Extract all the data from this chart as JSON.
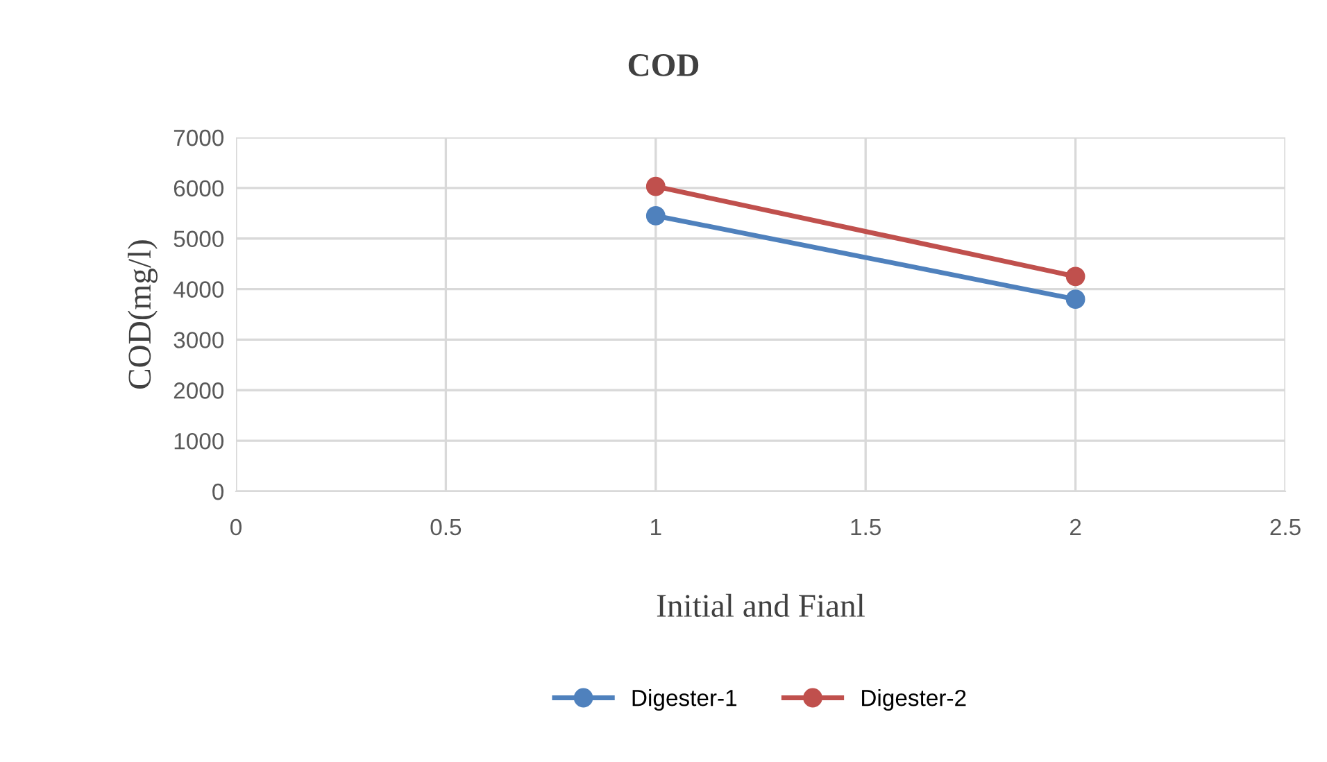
{
  "chart_data": {
    "type": "line",
    "title": "COD",
    "xlabel": "Initial and Fianl",
    "ylabel": "COD(mg/l)",
    "x": [
      1,
      2
    ],
    "series": [
      {
        "name": "Digester-1",
        "color": "#4f81bd",
        "values": [
          5450,
          3800
        ]
      },
      {
        "name": "Digester-2",
        "color": "#c0504d",
        "values": [
          6030,
          4250
        ]
      }
    ],
    "xlim": [
      0,
      2.5
    ],
    "xticks": [
      0,
      0.5,
      1,
      1.5,
      2,
      2.5
    ],
    "ylim": [
      0,
      7000
    ],
    "yticks": [
      0,
      1000,
      2000,
      3000,
      4000,
      5000,
      6000,
      7000
    ],
    "grid": true,
    "legend": "bottom",
    "marker": "circle",
    "line_style": "solid"
  }
}
